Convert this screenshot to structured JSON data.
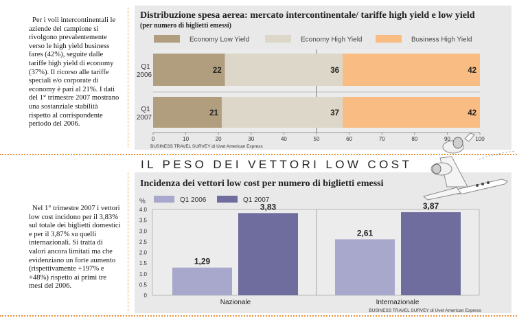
{
  "intro_text": {
    "top": "Per i voli intercontinentali le aziende del campione si rivolgono prevalentemente verso le high yield business fares (42%), seguite dalle tariffe high yield di economy (37%). Il ricorso alle tariffe speciali e/o corporate di economy è pari al 21%. I dati del 1° trimestre 2007 mostrano una sostanziale stabilità rispetto al corrispondente periodo del 2006.",
    "bottom": "Nel 1° trimestre 2007 i vettori low cost incidono per il 3,83% sul totale dei biglietti domestici e per il 3,87% su quelli internazionali. Si tratta di valori ancora limitati ma che evidenziano un forte aumento (rispettivamente +197% e +48%) rispetto ai primi tre mesi del 2006."
  },
  "section_title": "IL PESO DEI VETTORI LOW COST",
  "colors": {
    "economy_low": "#b09e7e",
    "economy_high": "#dcd7c9",
    "business_high": "#f9bc82",
    "q1_2006": "#a8a8cc",
    "q1_2007": "#6e6d9e",
    "panel": "#e9e9e9",
    "accent": "#e8913a"
  },
  "chart_data": [
    {
      "type": "bar",
      "orientation": "horizontal-stacked",
      "title": "Distribuzione spesa aerea:  mercato intercontinentale/ tariffe high yield e low yield",
      "subtitle": "(per numero di biglietti emessi)",
      "categories": [
        "Q1 2006",
        "Q1 2007"
      ],
      "category_labels": [
        [
          "Q1",
          "2006"
        ],
        [
          "Q1",
          "2007"
        ]
      ],
      "series": [
        {
          "name": "Economy Low Yield",
          "values": [
            22,
            21
          ]
        },
        {
          "name": "Economy High Yield",
          "values": [
            36,
            37
          ]
        },
        {
          "name": "Business High Yield",
          "values": [
            42,
            42
          ]
        }
      ],
      "xlim": [
        0,
        100
      ],
      "xticks": [
        0,
        10,
        20,
        30,
        40,
        50,
        60,
        70,
        80,
        90,
        100
      ],
      "legend": "top",
      "source": "BUSINESS TRAVEL SURVEY di Uvet American Express"
    },
    {
      "type": "bar",
      "title": "Incidenza dei vettori low cost per numero di biglietti emessi",
      "ylabel": "%",
      "categories": [
        "Nazionale",
        "Internazionale"
      ],
      "series": [
        {
          "name": "Q1 2006",
          "values": [
            1.29,
            2.61
          ],
          "labels": [
            "1,29",
            "2,61"
          ]
        },
        {
          "name": "Q1 2007",
          "values": [
            3.83,
            3.87
          ],
          "labels": [
            "3,83",
            "3,87"
          ]
        }
      ],
      "ylim": [
        0,
        4
      ],
      "yticks": [
        "0",
        "0.5",
        "1.0",
        "1.5",
        "2.0",
        "2.5",
        "3.0",
        "3.5",
        "4.0"
      ],
      "legend": "top-left",
      "grid": false,
      "source": "BUSINESS TRAVEL SURVEY di Uvet American Express"
    }
  ]
}
